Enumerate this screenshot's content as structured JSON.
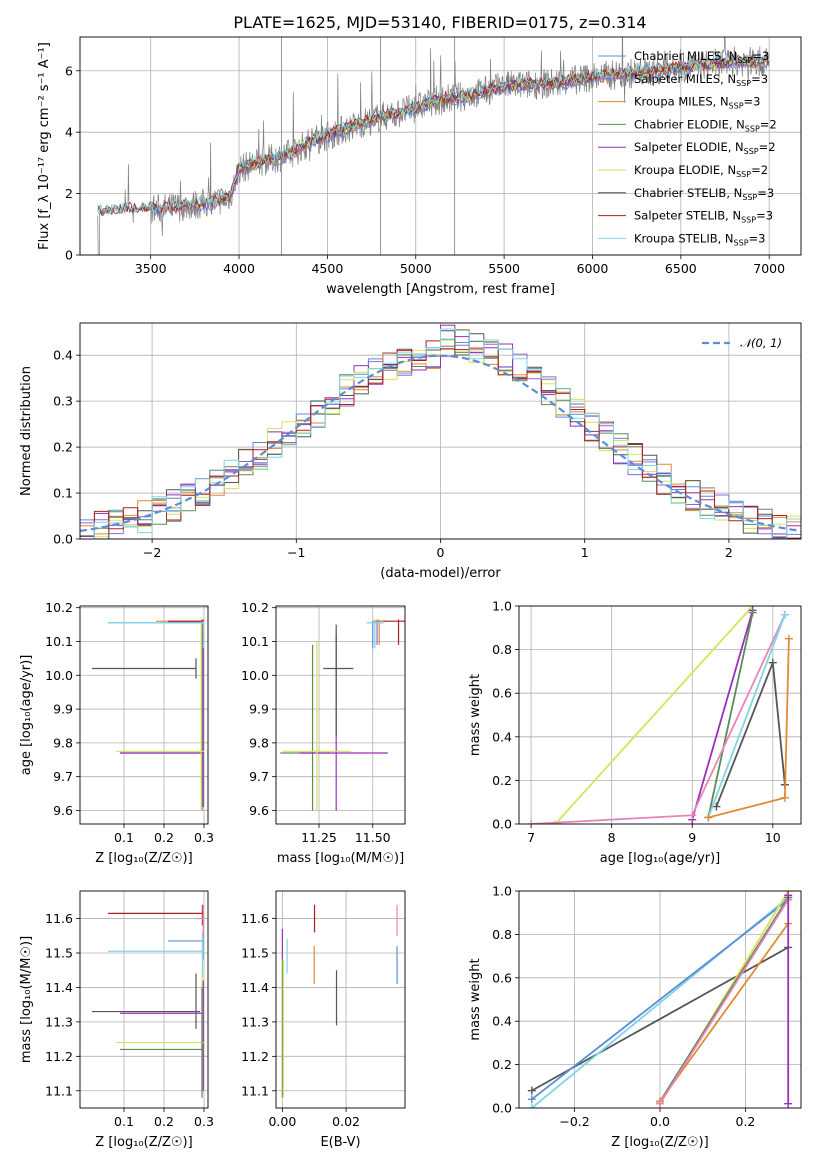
{
  "figure": {
    "title": "PLATE=1625, MJD=53140, FIBERID=0175, z=0.314"
  },
  "colors": {
    "Chabrier MILES": "#5a8fd6",
    "Salpeter MILES": "#8c6bd6",
    "Kroupa MILES": "#e08a34",
    "Chabrier ELODIE": "#5e8a5a",
    "Salpeter ELODIE": "#9a2fb8",
    "Kroupa ELODIE": "#d7e35a",
    "Chabrier STELIB": "#555555",
    "Salpeter STELIB": "#b01f1f",
    "Kroupa STELIB": "#7fd6e3",
    "data": "#7f7f7f",
    "normal": "#5b8dd9",
    "pink": "#e884b8"
  },
  "chart_data": [
    {
      "id": "spectrum",
      "type": "line",
      "title": "",
      "xlabel": "wavelength [Angstrom, rest frame]",
      "ylabel": "Flux [f_λ 10⁻¹⁷ erg cm⁻² s⁻¹ A⁻¹]",
      "xlim": [
        3100,
        7180
      ],
      "ylim": [
        0,
        7.1
      ],
      "xticks": [
        "3500",
        "4000",
        "4500",
        "5000",
        "5500",
        "6000",
        "6500",
        "7000"
      ],
      "yticks": [
        "0",
        "2",
        "4",
        "6"
      ],
      "legend": {
        "position": "right",
        "entries": [
          {
            "key": "Chabrier MILES",
            "label": "Chabrier MILES, N",
            "sub": "SSP",
            "tail": "=3"
          },
          {
            "key": "Salpeter MILES",
            "label": "Salpeter MILES, N",
            "sub": "SSP",
            "tail": "=3"
          },
          {
            "key": "Kroupa MILES",
            "label": "Kroupa MILES, N",
            "sub": "SSP",
            "tail": "=3"
          },
          {
            "key": "Chabrier ELODIE",
            "label": "Chabrier ELODIE, N",
            "sub": "SSP",
            "tail": "=2"
          },
          {
            "key": "Salpeter ELODIE",
            "label": "Salpeter ELODIE, N",
            "sub": "SSP",
            "tail": "=2"
          },
          {
            "key": "Kroupa ELODIE",
            "label": "Kroupa ELODIE, N",
            "sub": "SSP",
            "tail": "=2"
          },
          {
            "key": "Chabrier STELIB",
            "label": "Chabrier STELIB, N",
            "sub": "SSP",
            "tail": "=3"
          },
          {
            "key": "Salpeter STELIB",
            "label": "Salpeter STELIB, N",
            "sub": "SSP",
            "tail": "=3"
          },
          {
            "key": "Kroupa STELIB",
            "label": "Kroupa STELIB, N",
            "sub": "SSP",
            "tail": "=3"
          }
        ]
      },
      "continuum": [
        [
          3200,
          1.4
        ],
        [
          3400,
          1.5
        ],
        [
          3550,
          1.5
        ],
        [
          3700,
          1.6
        ],
        [
          3850,
          1.7
        ],
        [
          3950,
          1.9
        ],
        [
          4000,
          2.8
        ],
        [
          4100,
          3.0
        ],
        [
          4300,
          3.3
        ],
        [
          4400,
          3.7
        ],
        [
          4600,
          4.1
        ],
        [
          4800,
          4.5
        ],
        [
          4900,
          4.6
        ],
        [
          5100,
          5.0
        ],
        [
          5300,
          5.2
        ],
        [
          5500,
          5.5
        ],
        [
          5800,
          5.6
        ],
        [
          6000,
          5.8
        ],
        [
          6200,
          5.9
        ],
        [
          6500,
          6.1
        ],
        [
          6800,
          6.3
        ],
        [
          7000,
          6.3
        ]
      ]
    },
    {
      "id": "residuals",
      "type": "line",
      "title": "",
      "xlabel": "(data-model)/error",
      "ylabel": "Normed distribution",
      "xlim": [
        -2.5,
        2.5
      ],
      "ylim": [
        0,
        0.47
      ],
      "xticks": [
        "−2",
        "−1",
        "0",
        "1",
        "2"
      ],
      "yticks": [
        "0.0",
        "0.1",
        "0.2",
        "0.3",
        "0.4"
      ],
      "legend": {
        "position": "top-right",
        "label": "𝒩(0, 1)"
      },
      "bin_width": 0.1
    },
    {
      "id": "age-vs-Z",
      "type": "scatter",
      "xlabel": "Z [log₁₀(Z/Z☉)]",
      "ylabel": "age  [log₁₀(age/yr)]",
      "xlim": [
        -0.01,
        0.31
      ],
      "ylim": [
        9.56,
        10.205
      ],
      "xticks": [
        "0.1",
        "0.2",
        "0.3"
      ],
      "yticks": [
        "9.6",
        "9.7",
        "9.8",
        "9.9",
        "10.0",
        "10.1",
        "10.2"
      ],
      "points": [
        {
          "key": "Chabrier MILES",
          "x": 0.295,
          "y": 10.155,
          "x0": 0.06,
          "x1": 0.3,
          "y0": 10.12,
          "y1": 10.16
        },
        {
          "key": "Salpeter MILES",
          "x": 0.297,
          "y": 10.158,
          "x0": 0.21,
          "x1": 0.3,
          "y0": 10.13,
          "y1": 10.165
        },
        {
          "key": "Kroupa MILES",
          "x": 0.298,
          "y": 10.16,
          "x0": 0.18,
          "x1": 0.3,
          "y0": 10.1,
          "y1": 10.165
        },
        {
          "key": "Chabrier ELODIE",
          "x": 0.295,
          "y": 9.77,
          "x0": 0.09,
          "x1": 0.3,
          "y0": 9.6,
          "y1": 10.14
        },
        {
          "key": "Salpeter ELODIE",
          "x": 0.298,
          "y": 9.77,
          "x0": 0.09,
          "x1": 0.3,
          "y0": 9.61,
          "y1": 10.12
        },
        {
          "key": "Kroupa ELODIE",
          "x": 0.293,
          "y": 9.775,
          "x0": 0.08,
          "x1": 0.3,
          "y0": 9.6,
          "y1": 10.17
        },
        {
          "key": "Chabrier STELIB",
          "x": 0.28,
          "y": 10.02,
          "x0": 0.02,
          "x1": 0.28,
          "y0": 9.99,
          "y1": 10.05
        },
        {
          "key": "Salpeter STELIB",
          "x": 0.297,
          "y": 10.16,
          "x0": 0.21,
          "x1": 0.3,
          "y0": 10.09,
          "y1": 10.165
        },
        {
          "key": "Kroupa STELIB",
          "x": 0.298,
          "y": 10.155,
          "x0": 0.06,
          "x1": 0.3,
          "y0": 10.08,
          "y1": 10.16
        }
      ]
    },
    {
      "id": "age-vs-mass",
      "type": "scatter",
      "xlabel": "mass [log₁₀(M/M☉)]",
      "ylabel": "",
      "xlim": [
        11.05,
        11.65
      ],
      "ylim": [
        9.56,
        10.205
      ],
      "xticks": [
        "11.25",
        "11.50"
      ],
      "yticks": [
        "9.6",
        "9.7",
        "9.8",
        "9.9",
        "10.0",
        "10.1",
        "10.2"
      ],
      "points": [
        {
          "key": "Chabrier MILES",
          "x": 11.5,
          "y": 10.155,
          "x0": 11.48,
          "x1": 11.53,
          "y0": 10.08,
          "y1": 10.16
        },
        {
          "key": "Salpeter MILES",
          "x": 11.52,
          "y": 10.16,
          "x0": 11.5,
          "x1": 11.55,
          "y0": 10.09,
          "y1": 10.165
        },
        {
          "key": "Kroupa MILES",
          "x": 11.53,
          "y": 10.16,
          "x0": 11.5,
          "x1": 11.56,
          "y0": 10.09,
          "y1": 10.165
        },
        {
          "key": "Chabrier ELODIE",
          "x": 11.22,
          "y": 9.77,
          "x0": 11.07,
          "x1": 11.3,
          "y0": 9.6,
          "y1": 10.09
        },
        {
          "key": "Salpeter ELODIE",
          "x": 11.33,
          "y": 9.77,
          "x0": 11.16,
          "x1": 11.57,
          "y0": 9.6,
          "y1": 10.12
        },
        {
          "key": "Kroupa ELODIE",
          "x": 11.24,
          "y": 9.775,
          "x0": 11.08,
          "x1": 11.4,
          "y0": 9.6,
          "y1": 10.1
        },
        {
          "key": "Chabrier STELIB",
          "x": 11.33,
          "y": 10.02,
          "x0": 11.27,
          "x1": 11.41,
          "y0": 9.82,
          "y1": 10.15
        },
        {
          "key": "Salpeter STELIB",
          "x": 11.62,
          "y": 10.16,
          "x0": 11.55,
          "x1": 11.65,
          "y0": 10.09,
          "y1": 10.165
        },
        {
          "key": "Kroupa STELIB",
          "x": 11.51,
          "y": 10.155,
          "x0": 11.47,
          "x1": 11.55,
          "y0": 10.08,
          "y1": 10.165
        }
      ]
    },
    {
      "id": "weight-vs-age",
      "type": "line",
      "xlabel": "age  [log₁₀(age/yr)]",
      "ylabel": "mass weight",
      "xlim": [
        6.85,
        10.35
      ],
      "ylim": [
        0,
        1
      ],
      "xticks": [
        "7",
        "8",
        "9",
        "10"
      ],
      "yticks": [
        "0.0",
        "0.2",
        "0.4",
        "0.6",
        "0.8",
        "1.0"
      ],
      "series": [
        {
          "key": "Kroupa ELODIE",
          "x": [
            7.3,
            9.75
          ],
          "y": [
            0.0,
            1.0
          ]
        },
        {
          "key": "Salpeter ELODIE",
          "x": [
            9.0,
            9.75
          ],
          "y": [
            0.02,
            0.98
          ]
        },
        {
          "key": "Chabrier ELODIE",
          "x": [
            9.2,
            9.75
          ],
          "y": [
            0.03,
            0.97
          ]
        },
        {
          "key": "pink",
          "x": [
            7.0,
            9.0,
            10.15
          ],
          "y": [
            0.0,
            0.04,
            0.96
          ]
        },
        {
          "key": "Chabrier STELIB",
          "x": [
            9.3,
            10.0,
            10.15
          ],
          "y": [
            0.08,
            0.74,
            0.18
          ]
        },
        {
          "key": "Kroupa STELIB",
          "x": [
            9.2,
            10.15
          ],
          "y": [
            0.03,
            0.96
          ]
        },
        {
          "key": "Kroupa MILES",
          "x": [
            9.2,
            10.15,
            10.2
          ],
          "y": [
            0.03,
            0.12,
            0.85
          ]
        }
      ]
    },
    {
      "id": "mass-vs-Z",
      "type": "scatter",
      "xlabel": "Z [log₁₀(Z/Z☉)]",
      "ylabel": "mass [log₁₀(M/M☉)]",
      "xlim": [
        -0.01,
        0.31
      ],
      "ylim": [
        11.05,
        11.68
      ],
      "xticks": [
        "0.1",
        "0.2",
        "0.3"
      ],
      "yticks": [
        "11.1",
        "11.2",
        "11.3",
        "11.4",
        "11.5",
        "11.6"
      ],
      "points": [
        {
          "key": "Salpeter STELIB",
          "x": 0.296,
          "y": 11.615,
          "x0": 0.06,
          "x1": 0.3,
          "y0": 11.58,
          "y1": 11.64
        },
        {
          "key": "Chabrier MILES",
          "x": 0.297,
          "y": 11.535,
          "x0": 0.21,
          "x1": 0.3,
          "y0": 11.48,
          "y1": 11.56
        },
        {
          "key": "Kroupa STELIB",
          "x": 0.296,
          "y": 11.505,
          "x0": 0.06,
          "x1": 0.3,
          "y0": 11.43,
          "y1": 11.55
        },
        {
          "key": "Chabrier STELIB",
          "x": 0.28,
          "y": 11.33,
          "x0": 0.02,
          "x1": 0.29,
          "y0": 11.28,
          "y1": 11.44
        },
        {
          "key": "Salpeter ELODIE",
          "x": 0.298,
          "y": 11.325,
          "x0": 0.09,
          "x1": 0.3,
          "y0": 11.1,
          "y1": 11.42
        },
        {
          "key": "Kroupa ELODIE",
          "x": 0.295,
          "y": 11.24,
          "x0": 0.08,
          "x1": 0.3,
          "y0": 11.08,
          "y1": 11.44
        },
        {
          "key": "Chabrier ELODIE",
          "x": 0.295,
          "y": 11.22,
          "x0": 0.09,
          "x1": 0.3,
          "y0": 11.08,
          "y1": 11.4
        },
        {
          "key": "pink",
          "x": 0.298,
          "y": 11.6,
          "x0": 0.28,
          "x1": 0.3,
          "y0": 11.55,
          "y1": 11.64
        }
      ]
    },
    {
      "id": "mass-vs-ebv",
      "type": "scatter",
      "xlabel": "E(B-V)",
      "ylabel": "",
      "xlim": [
        -0.002,
        0.0385
      ],
      "ylim": [
        11.05,
        11.68
      ],
      "xticks": [
        "0.00",
        "0.02"
      ],
      "yticks": [
        "11.1",
        "11.2",
        "11.3",
        "11.4",
        "11.5",
        "11.6"
      ],
      "points": [
        {
          "key": "Salpeter ELODIE",
          "x": 0.0,
          "y": 11.52,
          "y0": 11.48,
          "y1": 11.57
        },
        {
          "key": "Chabrier ELODIE",
          "x": 0.0,
          "y": 11.3,
          "y0": 11.08,
          "y1": 11.48
        },
        {
          "key": "Kroupa ELODIE",
          "x": 0.0003,
          "y": 11.25,
          "y0": 11.08,
          "y1": 11.48
        },
        {
          "key": "Kroupa STELIB",
          "x": 0.0015,
          "y": 11.49,
          "y0": 11.44,
          "y1": 11.54
        },
        {
          "key": "Kroupa MILES",
          "x": 0.01,
          "y": 11.47,
          "y0": 11.41,
          "y1": 11.52
        },
        {
          "key": "Salpeter STELIB",
          "x": 0.0101,
          "y": 11.6,
          "y0": 11.56,
          "y1": 11.64
        },
        {
          "key": "Chabrier STELIB",
          "x": 0.017,
          "y": 11.37,
          "y0": 11.29,
          "y1": 11.45
        },
        {
          "key": "Chabrier MILES",
          "x": 0.036,
          "y": 11.46,
          "y0": 11.41,
          "y1": 11.52
        },
        {
          "key": "pink",
          "x": 0.036,
          "y": 11.6,
          "y0": 11.55,
          "y1": 11.64
        }
      ]
    },
    {
      "id": "weight-vs-Z",
      "type": "line",
      "xlabel": "Z [log₁₀(Z/Z☉)]",
      "ylabel": "mass weight",
      "xlim": [
        -0.33,
        0.33
      ],
      "ylim": [
        0,
        1
      ],
      "xticks": [
        "−0.2",
        "0.0",
        "0.2"
      ],
      "yticks": [
        "0.0",
        "0.2",
        "0.4",
        "0.6",
        "0.8",
        "1.0"
      ],
      "series": [
        {
          "key": "Chabrier STELIB",
          "x": [
            -0.3,
            0.3
          ],
          "y": [
            0.08,
            0.74
          ]
        },
        {
          "key": "Kroupa STELIB",
          "x": [
            -0.3,
            0.3
          ],
          "y": [
            0.0,
            0.97
          ]
        },
        {
          "key": "Chabrier MILES",
          "x": [
            -0.3,
            0.3
          ],
          "y": [
            0.04,
            0.96
          ]
        },
        {
          "key": "Kroupa ELODIE",
          "x": [
            0.0,
            0.3
          ],
          "y": [
            0.02,
            1.0
          ]
        },
        {
          "key": "Chabrier ELODIE",
          "x": [
            0.0,
            0.3
          ],
          "y": [
            0.03,
            0.97
          ]
        },
        {
          "key": "Kroupa MILES",
          "x": [
            0.0,
            0.3
          ],
          "y": [
            0.03,
            0.85
          ]
        },
        {
          "key": "pink",
          "x": [
            0.0,
            0.3
          ],
          "y": [
            0.02,
            0.96
          ]
        },
        {
          "key": "Salpeter ELODIE",
          "x": [
            0.3,
            0.3
          ],
          "y": [
            0.02,
            0.98
          ]
        }
      ]
    }
  ]
}
